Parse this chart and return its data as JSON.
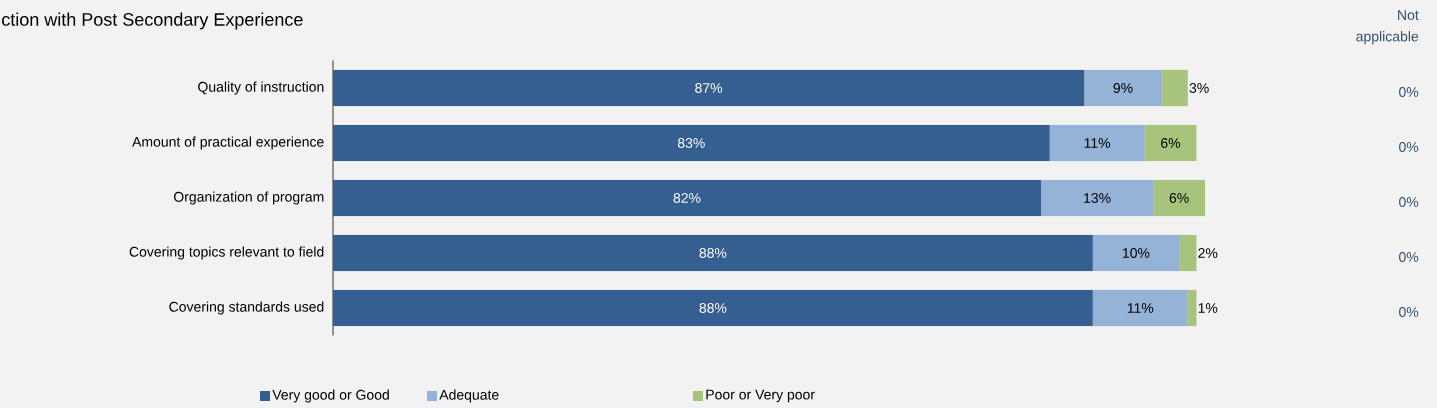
{
  "chart_data": {
    "type": "bar",
    "orientation": "horizontal",
    "stacked": true,
    "title": "ction with Post Secondary Experience",
    "categories": [
      "Quality of instruction",
      "Amount of practical experience",
      "Organization of program",
      "Covering topics relevant to field",
      "Covering standards used"
    ],
    "series": [
      {
        "name": "Very good or Good",
        "color": "#365f91",
        "values": [
          87,
          83,
          82,
          88,
          88
        ],
        "value_labels": [
          "87%",
          "83%",
          "82%",
          "88%",
          "88%"
        ]
      },
      {
        "name": "Adequate",
        "color": "#95b3d7",
        "values": [
          9,
          11,
          13,
          10,
          11
        ],
        "value_labels": [
          "9%",
          "11%",
          "13%",
          "10%",
          "11%"
        ]
      },
      {
        "name": "Poor or Very poor",
        "color": "#a8c47c",
        "values": [
          3,
          6,
          6,
          2,
          1
        ],
        "value_labels": [
          "3%",
          "6%",
          "6%",
          "2%",
          "1%"
        ]
      }
    ],
    "annotations": [
      "Not applicable",
      "0%",
      "0%",
      "0%",
      "0%",
      "0%"
    ],
    "legend": "bottom"
  }
}
